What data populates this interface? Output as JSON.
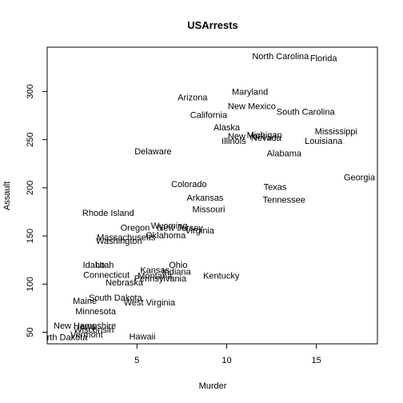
{
  "chart_data": {
    "type": "scatter",
    "title": "USArrests",
    "xlabel": "Murder",
    "ylabel": "Assault",
    "xlim": [
      0,
      18.4
    ],
    "ylim": [
      38,
      346
    ],
    "xticks": [
      5,
      10,
      15
    ],
    "yticks": [
      50,
      100,
      150,
      200,
      250,
      300
    ],
    "grid": false,
    "points": [
      {
        "label": "Alabama",
        "x": 13.2,
        "y": 236
      },
      {
        "label": "Alaska",
        "x": 10.0,
        "y": 263
      },
      {
        "label": "Arizona",
        "x": 8.1,
        "y": 294
      },
      {
        "label": "Arkansas",
        "x": 8.8,
        "y": 190
      },
      {
        "label": "California",
        "x": 9.0,
        "y": 276
      },
      {
        "label": "Colorado",
        "x": 7.9,
        "y": 204
      },
      {
        "label": "Connecticut",
        "x": 3.3,
        "y": 110
      },
      {
        "label": "Delaware",
        "x": 5.9,
        "y": 238
      },
      {
        "label": "Florida",
        "x": 15.4,
        "y": 335
      },
      {
        "label": "Georgia",
        "x": 17.4,
        "y": 211
      },
      {
        "label": "Hawaii",
        "x": 5.3,
        "y": 46
      },
      {
        "label": "Idaho",
        "x": 2.6,
        "y": 120
      },
      {
        "label": "Illinois",
        "x": 10.4,
        "y": 249
      },
      {
        "label": "Indiana",
        "x": 7.2,
        "y": 113
      },
      {
        "label": "Iowa",
        "x": 2.2,
        "y": 56
      },
      {
        "label": "Kansas",
        "x": 6.0,
        "y": 115
      },
      {
        "label": "Kentucky",
        "x": 9.7,
        "y": 109
      },
      {
        "label": "Louisiana",
        "x": 15.4,
        "y": 249
      },
      {
        "label": "Maine",
        "x": 2.1,
        "y": 83
      },
      {
        "label": "Maryland",
        "x": 11.3,
        "y": 300
      },
      {
        "label": "Massachusetts",
        "x": 4.4,
        "y": 149
      },
      {
        "label": "Michigan",
        "x": 12.1,
        "y": 255
      },
      {
        "label": "Minnesota",
        "x": 2.7,
        "y": 72
      },
      {
        "label": "Mississippi",
        "x": 16.1,
        "y": 259
      },
      {
        "label": "Missouri",
        "x": 9.0,
        "y": 178
      },
      {
        "label": "Montana",
        "x": 6.0,
        "y": 109
      },
      {
        "label": "Nebraska",
        "x": 4.3,
        "y": 102
      },
      {
        "label": "Nevada",
        "x": 12.2,
        "y": 252
      },
      {
        "label": "New Hampshire",
        "x": 2.1,
        "y": 57
      },
      {
        "label": "New Jersey",
        "x": 7.4,
        "y": 159
      },
      {
        "label": "New Mexico",
        "x": 11.4,
        "y": 285
      },
      {
        "label": "New York",
        "x": 11.1,
        "y": 254
      },
      {
        "label": "North Carolina",
        "x": 13.0,
        "y": 337
      },
      {
        "label": "North Dakota",
        "x": 0.8,
        "y": 45
      },
      {
        "label": "Ohio",
        "x": 7.3,
        "y": 120
      },
      {
        "label": "Oklahoma",
        "x": 6.6,
        "y": 151
      },
      {
        "label": "Oregon",
        "x": 4.9,
        "y": 159
      },
      {
        "label": "Pennsylvania",
        "x": 6.3,
        "y": 106
      },
      {
        "label": "Rhode Island",
        "x": 3.4,
        "y": 174
      },
      {
        "label": "South Carolina",
        "x": 14.4,
        "y": 279
      },
      {
        "label": "South Dakota",
        "x": 3.8,
        "y": 86
      },
      {
        "label": "Tennessee",
        "x": 13.2,
        "y": 188
      },
      {
        "label": "Texas",
        "x": 12.7,
        "y": 201
      },
      {
        "label": "Utah",
        "x": 3.2,
        "y": 120
      },
      {
        "label": "Vermont",
        "x": 2.2,
        "y": 48
      },
      {
        "label": "Virginia",
        "x": 8.5,
        "y": 156
      },
      {
        "label": "Washington",
        "x": 4.0,
        "y": 145
      },
      {
        "label": "West Virginia",
        "x": 5.7,
        "y": 81
      },
      {
        "label": "Wisconsin",
        "x": 2.6,
        "y": 53
      },
      {
        "label": "Wyoming",
        "x": 6.8,
        "y": 161
      }
    ]
  }
}
